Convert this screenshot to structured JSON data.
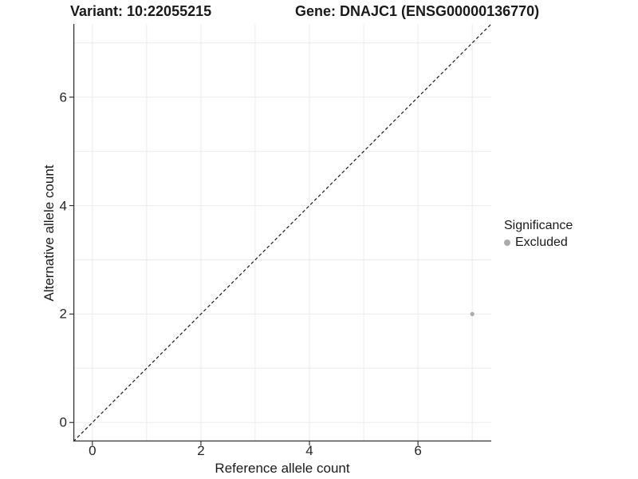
{
  "header": {
    "title_left": "Variant: 10:22055215",
    "title_right": "Gene: DNAJC1 (ENSG00000136770)"
  },
  "chart_data": {
    "type": "scatter",
    "xlabel": "Reference allele count",
    "ylabel": "Alternative allele count",
    "xlim": [
      -0.35,
      7.35
    ],
    "ylim": [
      -0.35,
      7.35
    ],
    "x_major_ticks": [
      0,
      2,
      4,
      6
    ],
    "y_major_ticks": [
      0,
      2,
      4,
      6
    ],
    "x_grid": [
      0,
      1,
      2,
      3,
      4,
      5,
      6,
      7
    ],
    "y_grid": [
      0,
      1,
      2,
      3,
      4,
      5,
      6,
      7
    ],
    "series": [
      {
        "name": "Excluded",
        "color": "#ababab",
        "points": [
          {
            "x": 7,
            "y": 2
          }
        ]
      }
    ],
    "reference_line": {
      "slope": 1,
      "intercept": 0,
      "style": "dashed",
      "color": "#1a1a1a"
    },
    "legend": {
      "title": "Significance",
      "position": "right",
      "items": [
        {
          "label": "Excluded",
          "color": "#ababab"
        }
      ]
    },
    "grid": true,
    "grid_color": "#ebebeb",
    "axis_color": "#333333",
    "point_radius": 2.6
  }
}
